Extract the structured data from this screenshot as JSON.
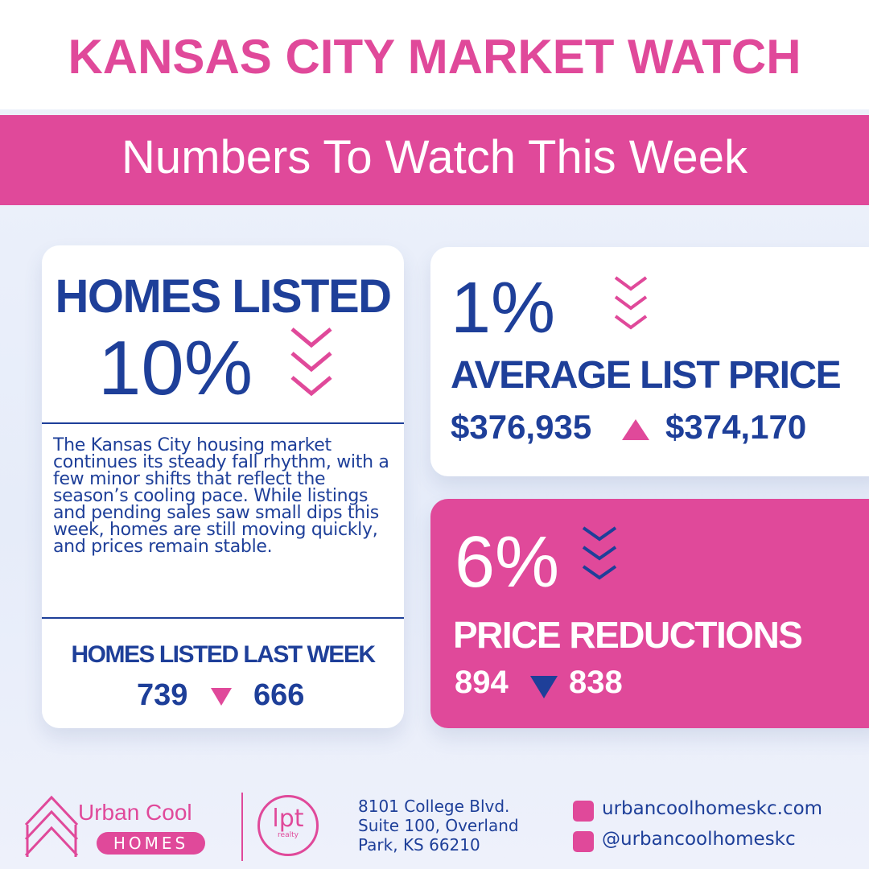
{
  "header": {
    "title": "KANSAS CITY MARKET WATCH",
    "subtitle": "Numbers To Watch This Week"
  },
  "homes_listed": {
    "title": "HOMES LISTED",
    "change": "10%",
    "description": "The Kansas City housing market continues its steady fall rhythm, with a few minor shifts that reflect the season’s cooling pace. While listings and pending sales saw small dips this week, homes are still moving quickly, and prices remain stable.",
    "footer_label": "HOMES LISTED LAST WEEK",
    "previous": "739",
    "current": "666"
  },
  "average_list_price": {
    "change": "1%",
    "label": "AVERAGE LIST PRICE",
    "previous": "$376,935",
    "current": "$374,170"
  },
  "price_reductions": {
    "change": "6%",
    "label": "PRICE REDUCTIONS",
    "previous": "894",
    "current": "838"
  },
  "footer": {
    "brand": "Urban Cool",
    "brand_sub": "HOMES",
    "partner": "lpt",
    "partner_sub": "realty",
    "address": [
      "8101 College Blvd.",
      "Suite 100, Overland",
      "Park, KS 66210"
    ],
    "website": "urbancoolhomeskc.com",
    "social": "@urbancoolhomeskc"
  }
}
